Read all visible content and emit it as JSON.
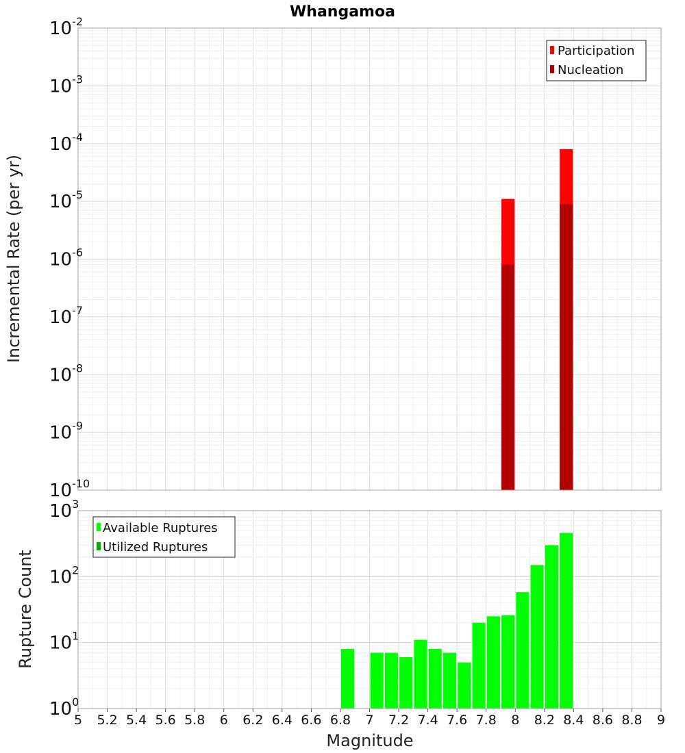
{
  "title": "Whangamoa",
  "chart_data": [
    {
      "type": "bar",
      "scale": "log",
      "xlabel": "Magnitude",
      "ylabel": "Incremental Rate (per yr)",
      "xlim": [
        5,
        9
      ],
      "ylim_exp": [
        -10,
        -2
      ],
      "grid": true,
      "legend_position": "top-right",
      "bar_width": 0.09,
      "series": [
        {
          "name": "Participation",
          "color": "#ff0000",
          "x": [
            7.95,
            8.35
          ],
          "values": [
            1.1e-05,
            8e-05
          ]
        },
        {
          "name": "Nucleation",
          "color": "#b20000",
          "x": [
            7.95,
            8.35
          ],
          "values": [
            8e-07,
            9e-06
          ]
        }
      ]
    },
    {
      "type": "bar",
      "scale": "log",
      "xlabel": "Magnitude",
      "ylabel": "Rupture Count",
      "xlim": [
        5,
        9
      ],
      "ylim_exp": [
        0,
        3
      ],
      "grid": true,
      "legend_position": "top-left",
      "bar_width": 0.09,
      "series": [
        {
          "name": "Available Ruptures",
          "color": "#00ff00",
          "x": [
            6.85,
            7.05,
            7.15,
            7.25,
            7.35,
            7.45,
            7.55,
            7.65,
            7.75,
            7.85,
            7.95,
            8.05,
            8.15,
            8.25,
            8.35
          ],
          "values": [
            8,
            7,
            7,
            6,
            11,
            8,
            7,
            5,
            20,
            25,
            26,
            58,
            150,
            300,
            460
          ]
        },
        {
          "name": "Utilized Ruptures",
          "color": "#00b000",
          "x": [
            7.95,
            8.35
          ],
          "values": [
            1,
            1
          ]
        }
      ]
    }
  ],
  "x_ticks": [
    "5",
    "5.2",
    "5.4",
    "5.6",
    "5.8",
    "6",
    "6.2",
    "6.4",
    "6.6",
    "6.8",
    "7",
    "7.2",
    "7.4",
    "7.6",
    "7.8",
    "8",
    "8.2",
    "8.4",
    "8.6",
    "8.8",
    "9"
  ],
  "top_y_ticks": [
    {
      "base": "10",
      "exp": "-10"
    },
    {
      "base": "10",
      "exp": "-9"
    },
    {
      "base": "10",
      "exp": "-8"
    },
    {
      "base": "10",
      "exp": "-7"
    },
    {
      "base": "10",
      "exp": "-6"
    },
    {
      "base": "10",
      "exp": "-5"
    },
    {
      "base": "10",
      "exp": "-4"
    },
    {
      "base": "10",
      "exp": "-3"
    },
    {
      "base": "10",
      "exp": "-2"
    }
  ],
  "bottom_y_ticks": [
    {
      "base": "10",
      "exp": "0"
    },
    {
      "base": "10",
      "exp": "1"
    },
    {
      "base": "10",
      "exp": "2"
    },
    {
      "base": "10",
      "exp": "3"
    }
  ]
}
